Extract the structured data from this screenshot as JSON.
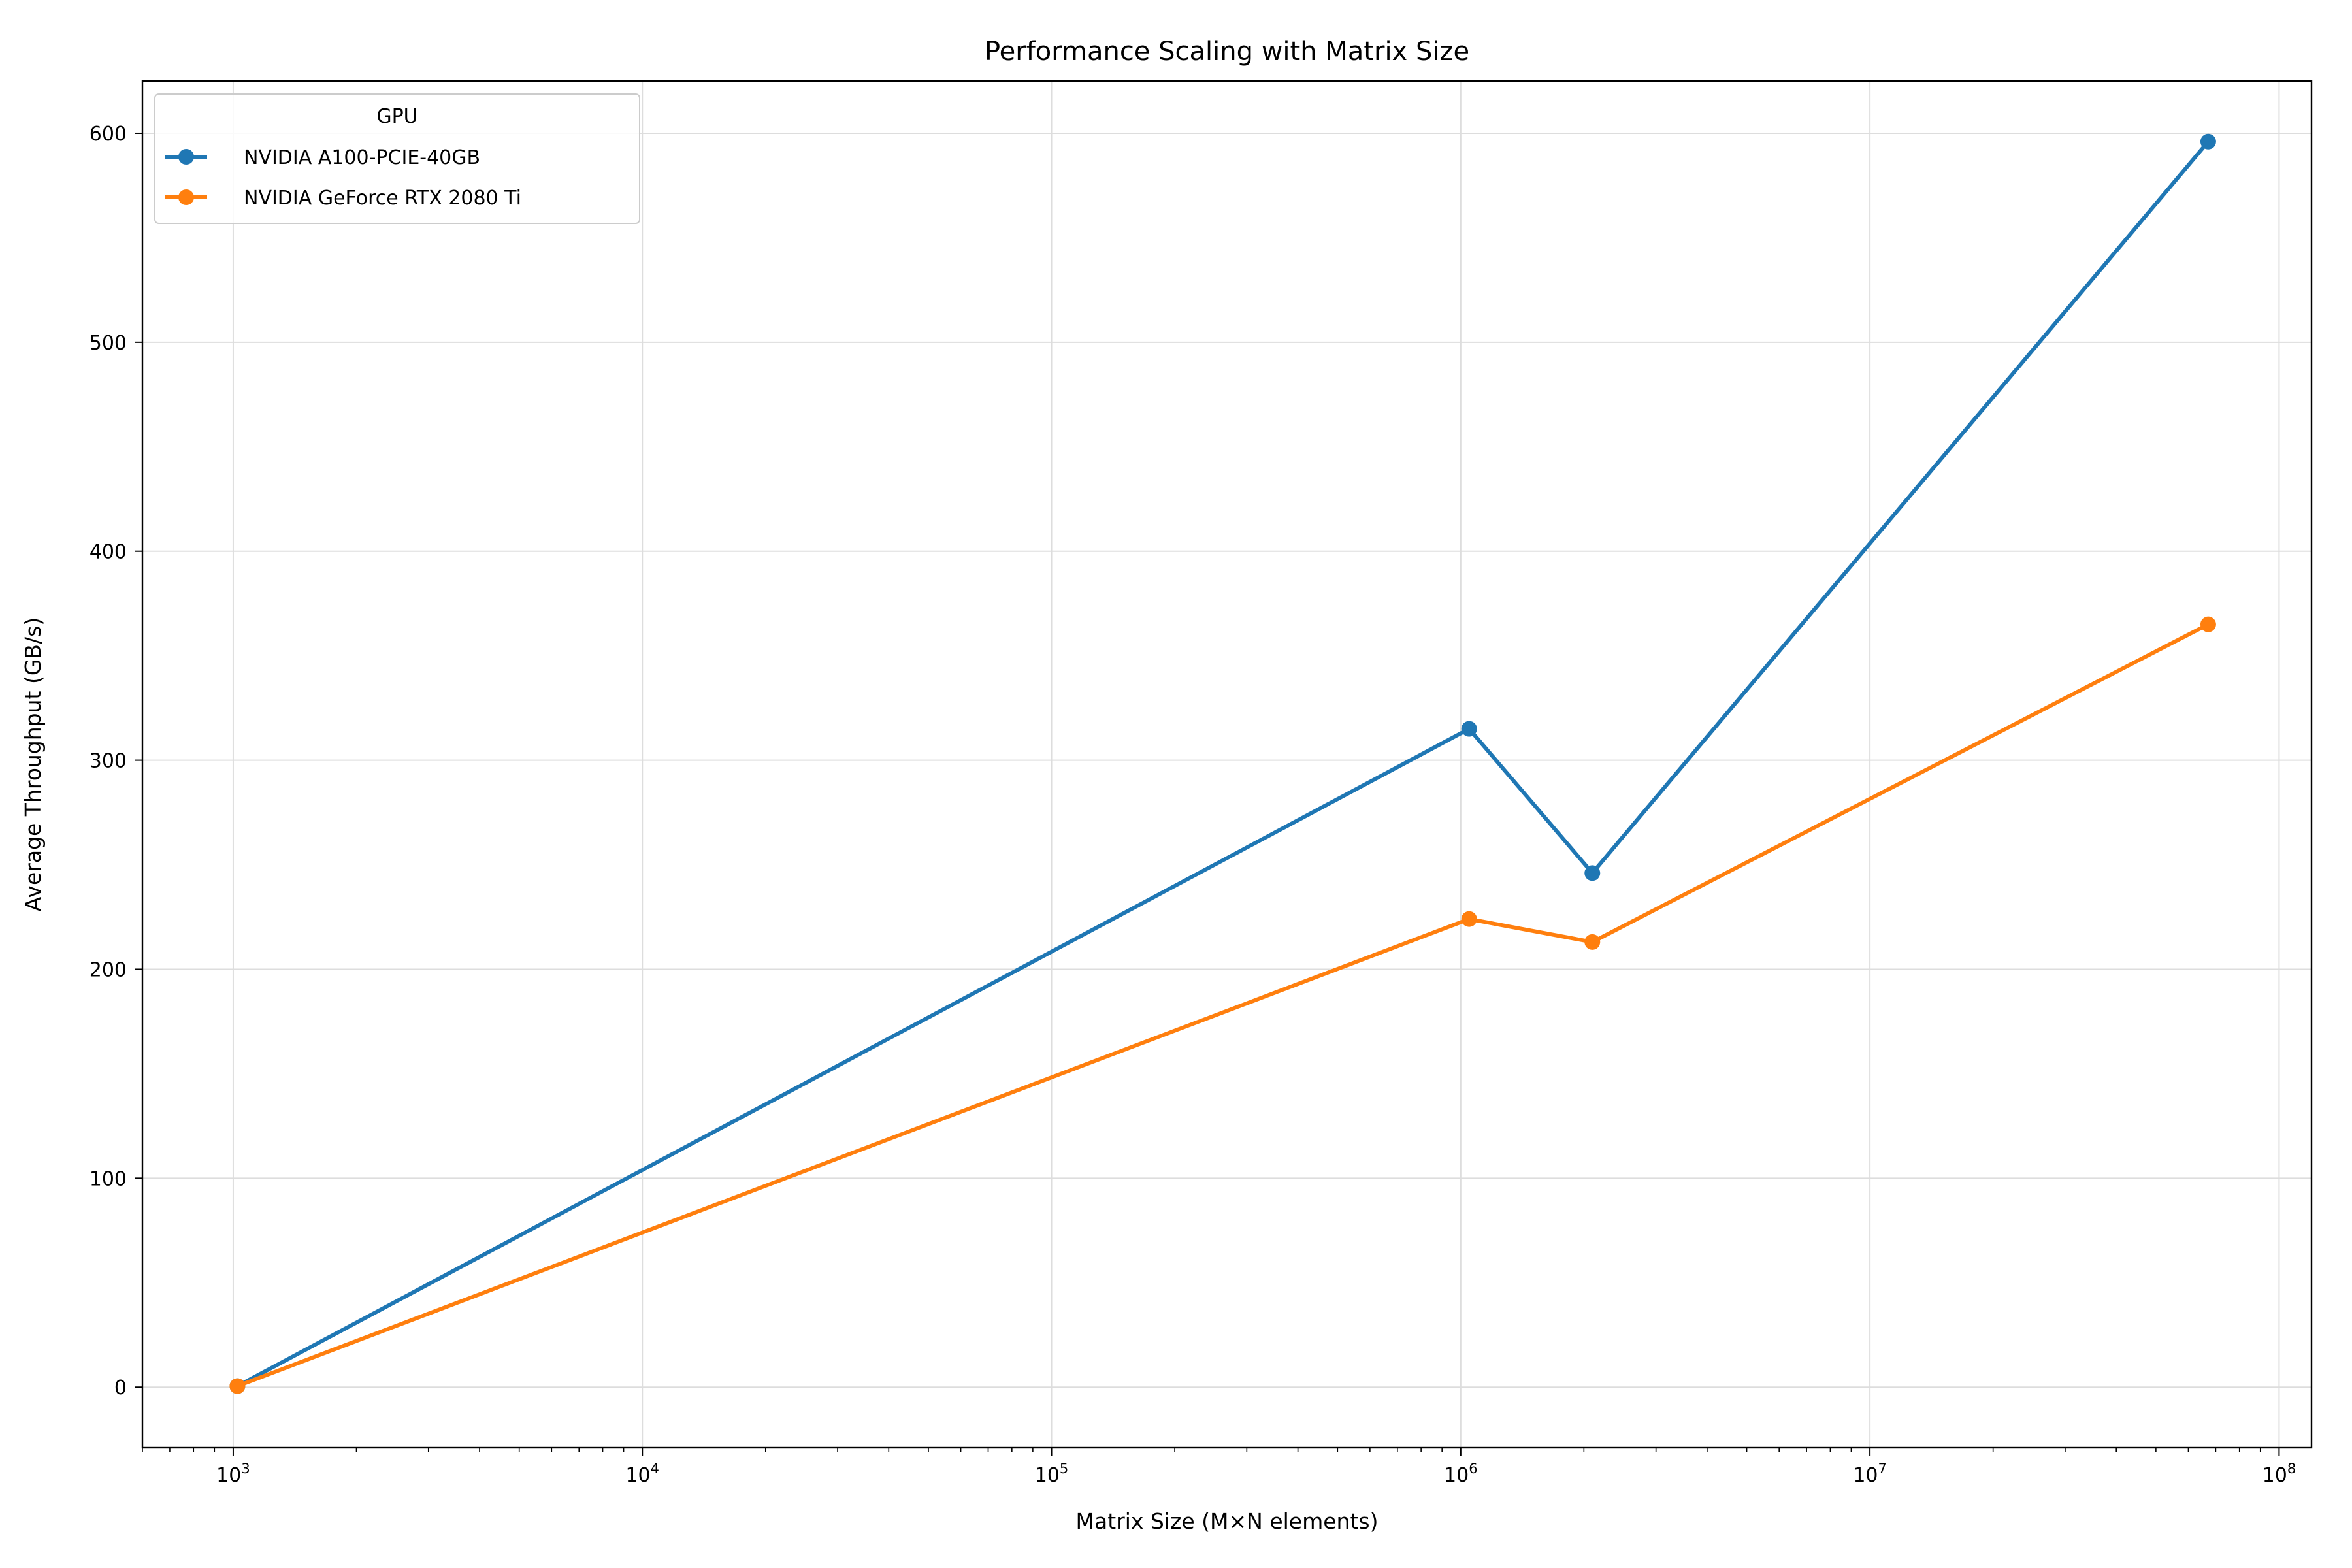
{
  "chart_data": {
    "type": "line",
    "title": "Performance Scaling with Matrix Size",
    "xlabel": "Matrix Size (M×N elements)",
    "ylabel": "Average Throughput (GB/s)",
    "x_scale": "log",
    "xlim": [
      600,
      120000000
    ],
    "ylim": [
      -29,
      625
    ],
    "x_ticks": [
      {
        "value": 1000,
        "base": "10",
        "exp": "3"
      },
      {
        "value": 10000,
        "base": "10",
        "exp": "4"
      },
      {
        "value": 100000,
        "base": "10",
        "exp": "5"
      },
      {
        "value": 1000000,
        "base": "10",
        "exp": "6"
      },
      {
        "value": 10000000,
        "base": "10",
        "exp": "7"
      },
      {
        "value": 100000000,
        "base": "10",
        "exp": "8"
      }
    ],
    "y_ticks": [
      0,
      100,
      200,
      300,
      400,
      500,
      600
    ],
    "grid": true,
    "legend": {
      "title": "GPU",
      "placement": "top-left"
    },
    "series": [
      {
        "name": "NVIDIA A100-PCIE-40GB",
        "color": "#1f77b4",
        "x": [
          1024,
          1048576,
          2097152,
          67108864
        ],
        "y": [
          0.5,
          315,
          246,
          596
        ]
      },
      {
        "name": "NVIDIA GeForce RTX 2080 Ti",
        "color": "#ff7f0e",
        "x": [
          1024,
          1048576,
          2097152,
          67108864
        ],
        "y": [
          0.5,
          224,
          213,
          365
        ]
      }
    ]
  }
}
